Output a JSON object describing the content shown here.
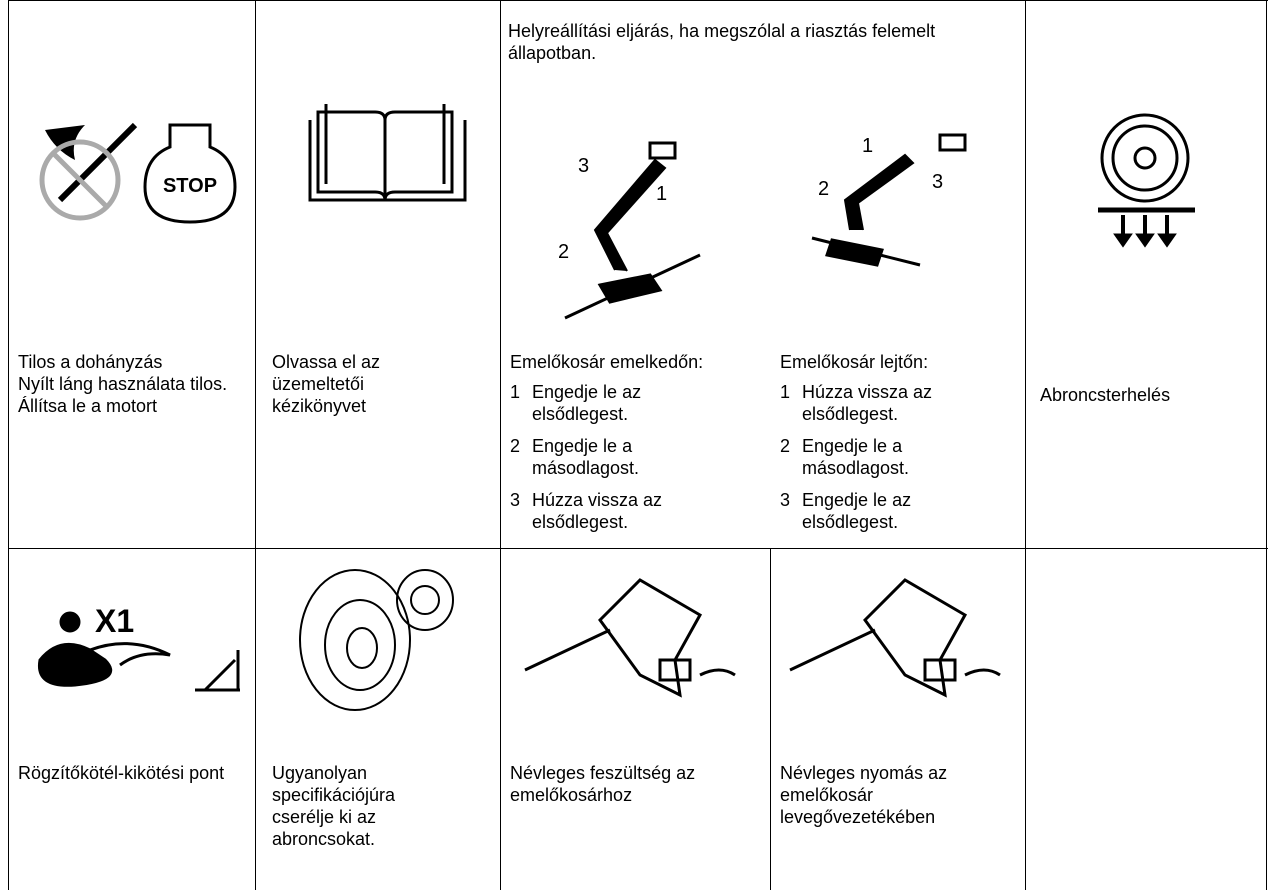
{
  "table": {
    "rows": [
      [
        {
          "lines": [
            "Tilos a dohányzás",
            "Nyílt láng használata tilos.",
            "Állítsa le a motort"
          ]
        },
        {
          "text": "Olvassa el az üzemeltetői kézikönyvet"
        },
        {
          "heading": "Helyreállítási eljárás, ha megszólal a riasztás felemelt állapotban.",
          "procedures": [
            {
              "title": "Emelőkosár emelkedőn:",
              "steps": [
                {
                  "num": "1",
                  "text": "Engedje le az elsődlegest."
                },
                {
                  "num": "2",
                  "text": "Engedje le a másodlagost."
                },
                {
                  "num": "3",
                  "text": "Húzza vissza az elsődlegest."
                }
              ],
              "icon_labels": [
                "3",
                "1",
                "2"
              ]
            },
            {
              "title": "Emelőkosár lejtőn:",
              "steps": [
                {
                  "num": "1",
                  "text": "Húzza vissza az elsődlegest."
                },
                {
                  "num": "2",
                  "text": "Engedje le a másodlagost."
                },
                {
                  "num": "3",
                  "text": "Engedje le az elsődlegest."
                }
              ],
              "icon_labels": [
                "1",
                "2",
                "3"
              ]
            }
          ]
        },
        {
          "text": "Abroncsterhelés",
          "icon_label": "STOP"
        }
      ],
      [
        {
          "text": "Rögzítőkötél-kikötési pont",
          "icon_label": "X1"
        },
        {
          "text": "Ugyanolyan specifikációjúra cserélje ki az abroncsokat."
        },
        {
          "text": "Névleges feszültség az emelőkosárhoz"
        },
        {
          "text": "Névleges nyomás az emelőkosár levegővezetékében"
        }
      ]
    ]
  }
}
